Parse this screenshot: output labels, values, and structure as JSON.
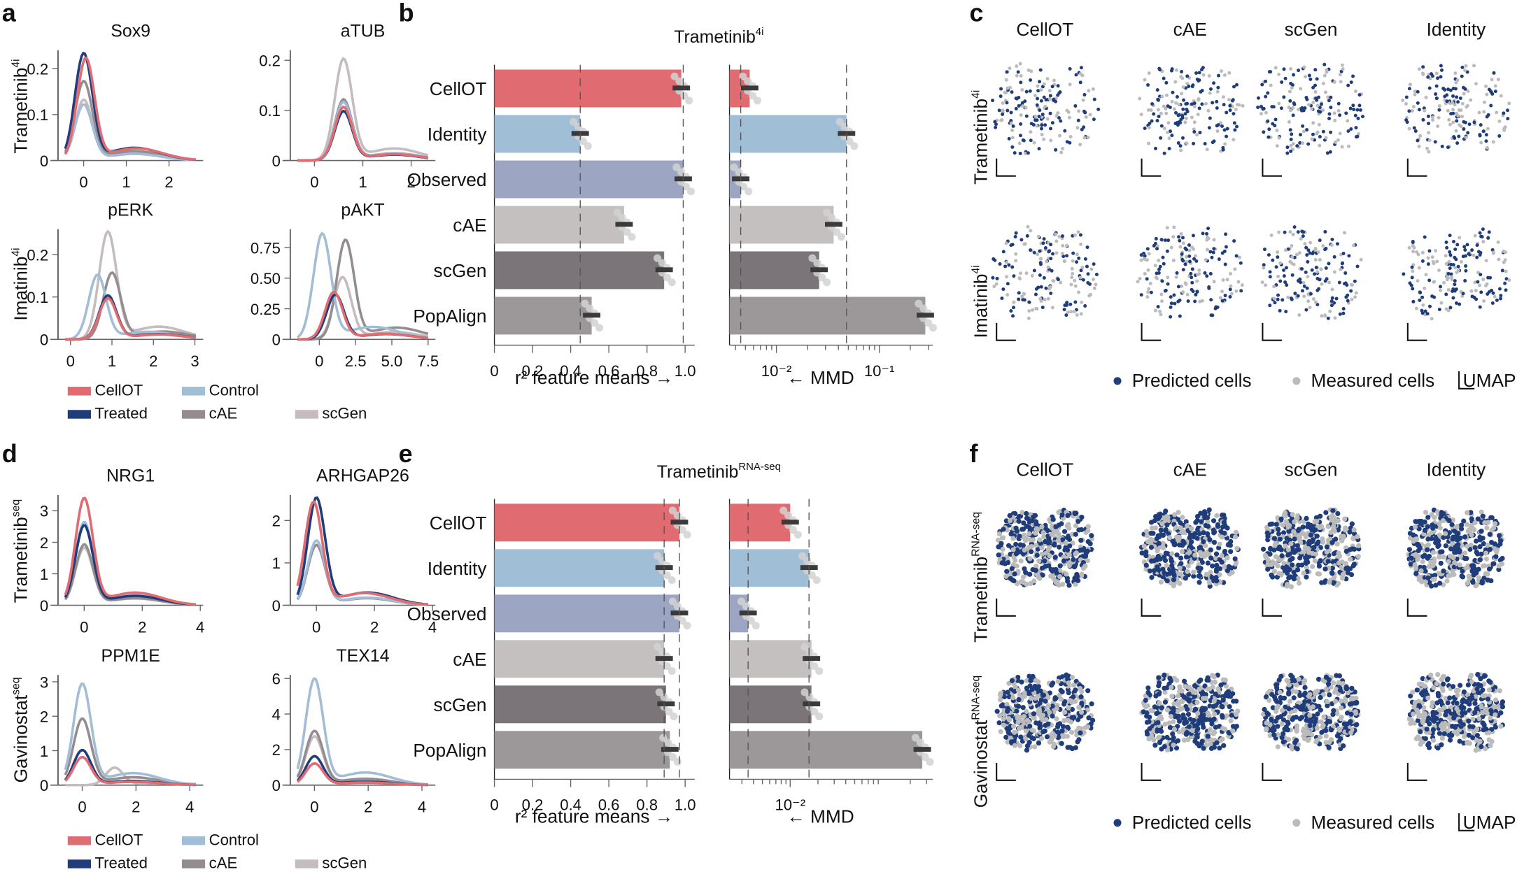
{
  "colors": {
    "CellOT": "#e06c72",
    "Treated": "#1f3d7a",
    "Control": "#a2bdd6",
    "cAE": "#958c90",
    "scGen": "#c4bcbe",
    "Identity": "#a0bed6",
    "Observed": "#9ca6c3",
    "cAE_bar": "#c4c0c0",
    "scGen_bar": "#7b7579",
    "PopAlign": "#9c9899",
    "predicted": "#1f3d7a",
    "measured": "#bbbbbb",
    "errbar": "#3a3a3a"
  },
  "panels": {
    "a": {
      "label": "a",
      "row_labels": [
        "Trametinib",
        "Imatinib"
      ],
      "row_sup": [
        "4i",
        "4i"
      ]
    },
    "b": {
      "label": "b"
    },
    "c": {
      "label": "c"
    },
    "d": {
      "label": "d",
      "row_labels": [
        "Trametinib",
        "Gavinostat"
      ],
      "row_sup": [
        "seq",
        "seq"
      ]
    },
    "e": {
      "label": "e"
    },
    "f": {
      "label": "f"
    }
  },
  "density_legend": [
    "CellOT",
    "Control",
    "Treated",
    "cAE",
    "scGen"
  ],
  "umap_legend": {
    "predicted": "Predicted cells",
    "measured": "Measured cells",
    "umap": "UMAP"
  },
  "umap_columns": [
    "CellOT",
    "cAE",
    "scGen",
    "Identity"
  ],
  "umap_rows_c": [
    {
      "name": "Trametinib",
      "sup": "4i"
    },
    {
      "name": "Imatinib",
      "sup": "4i"
    }
  ],
  "umap_rows_f": [
    {
      "name": "Trametinib",
      "sup": "RNA-seq"
    },
    {
      "name": "Gavinostat",
      "sup": "RNA-seq"
    }
  ],
  "chart_data": [
    {
      "id": "a-sox9",
      "type": "line",
      "title": "Sox9",
      "xlim": [
        -0.6,
        2.8
      ],
      "ylim": [
        0,
        0.24
      ],
      "xticks": [
        0,
        1,
        2
      ],
      "yticks": [
        0,
        0.1,
        0.2
      ],
      "series": [
        {
          "name": "Treated",
          "peak_x": 0.0,
          "peak": 0.23
        },
        {
          "name": "CellOT",
          "peak_x": 0.05,
          "peak": 0.22
        },
        {
          "name": "cAE",
          "peak_x": 0.0,
          "peak": 0.17
        },
        {
          "name": "Control",
          "peak_x": 0.0,
          "peak": 0.12
        },
        {
          "name": "scGen",
          "peak_x": 0.0,
          "peak": 0.13
        }
      ]
    },
    {
      "id": "a-atub",
      "type": "line",
      "title": "aTUB",
      "xlim": [
        -0.5,
        2.5
      ],
      "ylim": [
        0,
        0.22
      ],
      "xticks": [
        0,
        1,
        2
      ],
      "yticks": [
        0,
        0.1,
        0.2
      ],
      "series": [
        {
          "name": "scGen",
          "peak_x": 0.6,
          "peak": 0.2
        },
        {
          "name": "cAE",
          "peak_x": 0.6,
          "peak": 0.12
        },
        {
          "name": "Control",
          "peak_x": 0.6,
          "peak": 0.115
        },
        {
          "name": "CellOT",
          "peak_x": 0.6,
          "peak": 0.105
        },
        {
          "name": "Treated",
          "peak_x": 0.6,
          "peak": 0.097
        }
      ]
    },
    {
      "id": "a-perk",
      "type": "line",
      "title": "pERK",
      "xlim": [
        -0.3,
        3.2
      ],
      "ylim": [
        0,
        0.26
      ],
      "xticks": [
        0,
        1,
        2,
        3
      ],
      "yticks": [
        0,
        0.1,
        0.2
      ],
      "series": [
        {
          "name": "scGen",
          "peak_x": 0.9,
          "peak": 0.25
        },
        {
          "name": "cAE",
          "peak_x": 1.0,
          "peak": 0.155
        },
        {
          "name": "Control",
          "peak_x": 0.65,
          "peak": 0.15
        },
        {
          "name": "Treated",
          "peak_x": 0.9,
          "peak": 0.102
        },
        {
          "name": "CellOT",
          "peak_x": 0.9,
          "peak": 0.095
        }
      ]
    },
    {
      "id": "a-pakt",
      "type": "line",
      "title": "pAKT",
      "xlim": [
        -2,
        8
      ],
      "ylim": [
        0,
        0.9
      ],
      "xticks": [
        0,
        2.5,
        5.0,
        7.5
      ],
      "xticklabels": [
        "0",
        "2.5",
        "5.0",
        "7.5"
      ],
      "yticks": [
        0,
        0.25,
        0.5,
        0.75
      ],
      "yticklabels": [
        "0",
        "0.25",
        "0.50",
        "0.75"
      ],
      "series": [
        {
          "name": "Control",
          "peak_x": 0.2,
          "peak": 0.85
        },
        {
          "name": "cAE",
          "peak_x": 1.8,
          "peak": 0.8
        },
        {
          "name": "scGen",
          "peak_x": 1.6,
          "peak": 0.5
        },
        {
          "name": "CellOT",
          "peak_x": 1.0,
          "peak": 0.38
        },
        {
          "name": "Treated",
          "peak_x": 1.1,
          "peak": 0.36
        }
      ]
    },
    {
      "id": "d-nrg1",
      "type": "line",
      "title": "NRG1",
      "xlim": [
        -0.9,
        4.1
      ],
      "ylim": [
        0,
        3.5
      ],
      "xticks": [
        0,
        2,
        4
      ],
      "yticks": [
        0,
        1,
        2,
        3
      ],
      "series": [
        {
          "name": "CellOT",
          "peak_x": 0,
          "peak": 3.35
        },
        {
          "name": "Control",
          "peak_x": 0,
          "peak": 2.6
        },
        {
          "name": "Treated",
          "peak_x": 0,
          "peak": 2.5
        },
        {
          "name": "cAE",
          "peak_x": 0,
          "peak": 1.9
        },
        {
          "name": "scGen",
          "peak_x": 0,
          "peak": 1.8
        }
      ]
    },
    {
      "id": "d-arhgap26",
      "type": "line",
      "title": "ARHGAP26",
      "xlim": [
        -0.9,
        4.1
      ],
      "ylim": [
        0,
        2.6
      ],
      "xticks": [
        0,
        2,
        4
      ],
      "yticks": [
        0,
        1,
        2
      ],
      "series": [
        {
          "name": "Treated",
          "peak_x": 0,
          "peak": 2.5
        },
        {
          "name": "CellOT",
          "peak_x": -0.1,
          "peak": 2.4
        },
        {
          "name": "Control",
          "peak_x": 0,
          "peak": 1.5
        },
        {
          "name": "cAE",
          "peak_x": 0,
          "peak": 1.4
        },
        {
          "name": "scGen",
          "peak_x": 0,
          "peak": 1.4
        }
      ]
    },
    {
      "id": "d-ppm1e",
      "type": "line",
      "title": "PPM1E",
      "xlim": [
        -0.9,
        4.5
      ],
      "ylim": [
        0,
        3.2
      ],
      "xticks": [
        0,
        2,
        4
      ],
      "yticks": [
        0,
        1,
        2,
        3
      ],
      "series": [
        {
          "name": "Control",
          "peak_x": 0,
          "peak": 2.9
        },
        {
          "name": "cAE",
          "peak_x": 0,
          "peak": 1.9
        },
        {
          "name": "Treated",
          "peak_x": 0,
          "peak": 1.0
        },
        {
          "name": "CellOT",
          "peak_x": 0,
          "peak": 0.8
        },
        {
          "name": "scGen",
          "peak_x": 1.2,
          "peak": 0.5
        }
      ]
    },
    {
      "id": "d-tex14",
      "type": "line",
      "title": "TEX14",
      "xlim": [
        -0.9,
        4.5
      ],
      "ylim": [
        0,
        6.2
      ],
      "xticks": [
        0,
        2,
        4
      ],
      "yticks": [
        0,
        2,
        4,
        6
      ],
      "series": [
        {
          "name": "Control",
          "peak_x": 0,
          "peak": 5.9
        },
        {
          "name": "cAE",
          "peak_x": 0,
          "peak": 3.0
        },
        {
          "name": "scGen",
          "peak_x": 0,
          "peak": 2.7
        },
        {
          "name": "Treated",
          "peak_x": 0,
          "peak": 1.6
        },
        {
          "name": "CellOT",
          "peak_x": 0,
          "peak": 1.2
        }
      ]
    },
    {
      "id": "b-r2",
      "type": "bar",
      "title": "Trametinib",
      "title_sup": "4i",
      "xlabel": "r² feature means",
      "xlim": [
        0,
        1.05
      ],
      "xticks": [
        0,
        0.2,
        0.4,
        0.6,
        0.8,
        1.0
      ],
      "xticklabels": [
        "0",
        "0.2",
        "0.4",
        "0.6",
        "0.8",
        "1.0"
      ],
      "categories": [
        "CellOT",
        "Identity",
        "Observed",
        "cAE",
        "scGen",
        "PopAlign"
      ],
      "values": [
        0.98,
        0.45,
        0.99,
        0.68,
        0.89,
        0.51
      ],
      "ref_lines": [
        0.45,
        0.99
      ]
    },
    {
      "id": "b-mmd",
      "type": "bar",
      "scale": "log",
      "xlabel": "MMD",
      "xlim": [
        0.0035,
        0.33
      ],
      "xticks": [
        0.01,
        0.1
      ],
      "xticklabels": [
        "10⁻²",
        "10⁻¹"
      ],
      "categories": [
        "CellOT",
        "Identity",
        "Observed",
        "cAE",
        "scGen",
        "PopAlign"
      ],
      "values": [
        0.0055,
        0.048,
        0.0045,
        0.036,
        0.026,
        0.28
      ],
      "ref_lines": [
        0.0045,
        0.048
      ]
    },
    {
      "id": "e-r2",
      "type": "bar",
      "title": "Trametinib",
      "title_sup": "RNA-seq",
      "xlabel": "r² feature means",
      "xlim": [
        0,
        1.05
      ],
      "xticks": [
        0,
        0.2,
        0.4,
        0.6,
        0.8,
        1.0
      ],
      "xticklabels": [
        "0",
        "0.2",
        "0.4",
        "0.6",
        "0.8",
        "1.0"
      ],
      "categories": [
        "CellOT",
        "Identity",
        "Observed",
        "cAE",
        "scGen",
        "PopAlign"
      ],
      "values": [
        0.97,
        0.89,
        0.97,
        0.89,
        0.9,
        0.92
      ],
      "ref_lines": [
        0.89,
        0.97
      ]
    },
    {
      "id": "e-mmd",
      "type": "bar",
      "scale": "log",
      "xlabel": "MMD",
      "xlim": [
        0.0022,
        0.35
      ],
      "xticks": [
        0.01
      ],
      "xticklabels": [
        "10⁻²"
      ],
      "categories": [
        "CellOT",
        "Identity",
        "Observed",
        "cAE",
        "scGen",
        "PopAlign"
      ],
      "values": [
        0.01,
        0.016,
        0.0035,
        0.017,
        0.017,
        0.27
      ],
      "ref_lines": [
        0.0035,
        0.016
      ]
    }
  ]
}
